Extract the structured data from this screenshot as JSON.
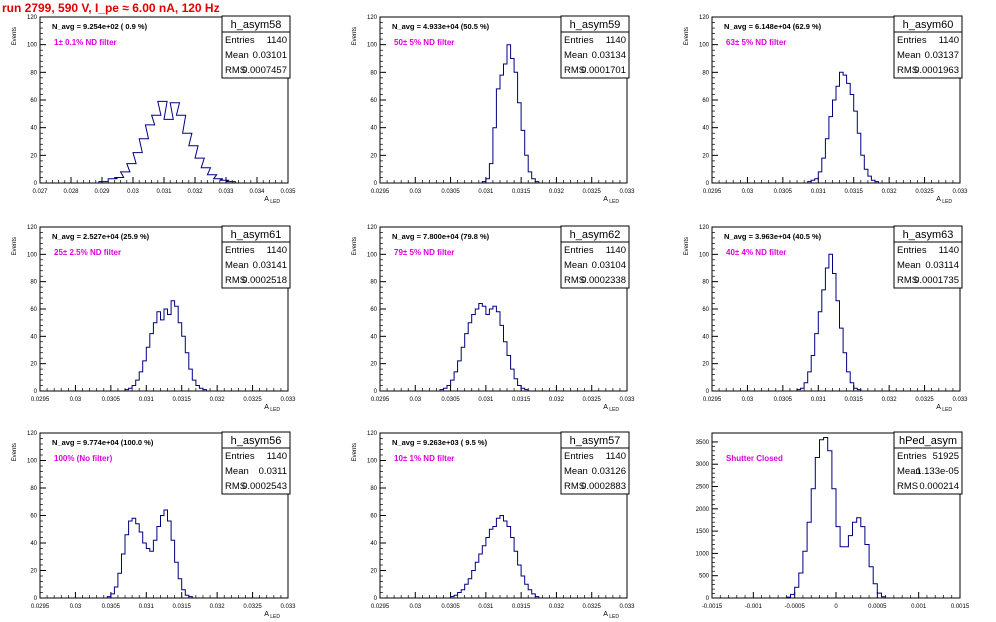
{
  "header": {
    "title": "run 2799,   590 V, I_pe ≈ 6.00 nA, 120 Hz",
    "title_color": "#e00000"
  },
  "colors": {
    "histogram": "#000080",
    "annotation": "#dd00dd",
    "axis": "#000000"
  },
  "chart_data": [
    {
      "type": "histogram",
      "name": "h_asym58",
      "navg": "N_avg = 9.254e+02 ( 0.9 %)",
      "filter": "1± 0.1% ND filter",
      "stats": {
        "Entries": "1140",
        "Mean": "0.03101",
        "RMS": "0.0007457"
      },
      "ylabel": "Events",
      "xlabel": "A_LED",
      "xlim": [
        0.027,
        0.035
      ],
      "ylim": [
        0,
        120
      ],
      "xticks": [
        "0.027",
        "0.028",
        "0.029",
        "0.03",
        "0.031",
        "0.032",
        "0.033",
        "0.034",
        "0.035"
      ],
      "xtickvals": [
        0.027,
        0.028,
        0.029,
        0.03,
        0.031,
        0.032,
        0.033,
        0.034,
        0.035
      ],
      "yticks": [
        0,
        20,
        40,
        60,
        80,
        100,
        120
      ],
      "mean": 0.03101,
      "sigma": 0.000746,
      "peak": 60,
      "bins": [
        [
          0.0289,
          1
        ],
        [
          0.0292,
          3
        ],
        [
          0.0294,
          4
        ],
        [
          0.0296,
          8
        ],
        [
          0.0298,
          14
        ],
        [
          0.03,
          22
        ],
        [
          0.0302,
          32
        ],
        [
          0.0304,
          42
        ],
        [
          0.0306,
          49
        ],
        [
          0.0308,
          59
        ],
        [
          0.031,
          46
        ],
        [
          0.0312,
          58
        ],
        [
          0.0314,
          49
        ],
        [
          0.0316,
          36
        ],
        [
          0.0318,
          27
        ],
        [
          0.032,
          18
        ],
        [
          0.0322,
          11
        ],
        [
          0.0324,
          6
        ],
        [
          0.0326,
          3
        ],
        [
          0.0328,
          2
        ],
        [
          0.033,
          1
        ]
      ]
    },
    {
      "type": "histogram",
      "name": "h_asym59",
      "navg": "N_avg = 4.933e+04 (50.5 %)",
      "filter": "50± 5% ND filter",
      "stats": {
        "Entries": "1140",
        "Mean": "0.03134",
        "RMS": "0.0001701"
      },
      "ylabel": "Events",
      "xlabel": "A_LED",
      "xlim": [
        0.0295,
        0.033
      ],
      "ylim": [
        0,
        120
      ],
      "xticks": [
        "0.0295",
        "0.03",
        "0.0305",
        "0.031",
        "0.0315",
        "0.032",
        "0.0325",
        "0.033"
      ],
      "xtickvals": [
        0.0295,
        0.03,
        0.0305,
        0.031,
        0.0315,
        0.032,
        0.0325,
        0.033
      ],
      "yticks": [
        0,
        20,
        40,
        60,
        80,
        100,
        120
      ],
      "mean": 0.03134,
      "sigma": 0.00017,
      "peak": 100,
      "bins": [
        [
          0.03095,
          1
        ],
        [
          0.031,
          3
        ],
        [
          0.03105,
          14
        ],
        [
          0.0311,
          40
        ],
        [
          0.03115,
          68
        ],
        [
          0.0312,
          78
        ],
        [
          0.03125,
          86
        ],
        [
          0.0313,
          100
        ],
        [
          0.03135,
          90
        ],
        [
          0.0314,
          80
        ],
        [
          0.03145,
          58
        ],
        [
          0.0315,
          38
        ],
        [
          0.03155,
          20
        ],
        [
          0.0316,
          8
        ],
        [
          0.03165,
          3
        ],
        [
          0.0317,
          1
        ]
      ]
    },
    {
      "type": "histogram",
      "name": "h_asym60",
      "navg": "N_avg = 6.148e+04 (62.9 %)",
      "filter": "63± 5% ND filter",
      "stats": {
        "Entries": "1140",
        "Mean": "0.03137",
        "RMS": "0.0001963"
      },
      "ylabel": "Events",
      "xlabel": "A_LED",
      "xlim": [
        0.0295,
        0.033
      ],
      "ylim": [
        0,
        120
      ],
      "xticks": [
        "0.0295",
        "0.03",
        "0.0305",
        "0.031",
        "0.0315",
        "0.032",
        "0.0325",
        "0.033"
      ],
      "xtickvals": [
        0.0295,
        0.03,
        0.0305,
        0.031,
        0.0315,
        0.032,
        0.0325,
        0.033
      ],
      "yticks": [
        0,
        20,
        40,
        60,
        80,
        100,
        120
      ],
      "mean": 0.03137,
      "sigma": 0.000196,
      "peak": 80,
      "bins": [
        [
          0.03085,
          1
        ],
        [
          0.0309,
          2
        ],
        [
          0.03095,
          3
        ],
        [
          0.031,
          8
        ],
        [
          0.03105,
          18
        ],
        [
          0.0311,
          32
        ],
        [
          0.03115,
          48
        ],
        [
          0.0312,
          60
        ],
        [
          0.03125,
          70
        ],
        [
          0.0313,
          80
        ],
        [
          0.03135,
          78
        ],
        [
          0.0314,
          72
        ],
        [
          0.03145,
          64
        ],
        [
          0.0315,
          52
        ],
        [
          0.03155,
          36
        ],
        [
          0.0316,
          20
        ],
        [
          0.03165,
          10
        ],
        [
          0.0317,
          5
        ],
        [
          0.03175,
          2
        ],
        [
          0.0318,
          1
        ]
      ]
    },
    {
      "type": "histogram",
      "name": "h_asym61",
      "navg": "N_avg = 2.527e+04 (25.9 %)",
      "filter": "25± 2.5% ND filter",
      "stats": {
        "Entries": "1140",
        "Mean": "0.03141",
        "RMS": "0.0002518"
      },
      "ylabel": "Events",
      "xlabel": "A_LED",
      "xlim": [
        0.0295,
        0.033
      ],
      "ylim": [
        0,
        120
      ],
      "xticks": [
        "0.0295",
        "0.03",
        "0.0305",
        "0.031",
        "0.0315",
        "0.032",
        "0.0325",
        "0.033"
      ],
      "xtickvals": [
        0.0295,
        0.03,
        0.0305,
        0.031,
        0.0315,
        0.032,
        0.0325,
        0.033
      ],
      "yticks": [
        0,
        20,
        40,
        60,
        80,
        100,
        120
      ],
      "mean": 0.03141,
      "sigma": 0.00025,
      "peak": 67,
      "bins": [
        [
          0.0307,
          1
        ],
        [
          0.03075,
          2
        ],
        [
          0.0308,
          4
        ],
        [
          0.03085,
          8
        ],
        [
          0.0309,
          14
        ],
        [
          0.03095,
          22
        ],
        [
          0.031,
          32
        ],
        [
          0.03105,
          42
        ],
        [
          0.0311,
          50
        ],
        [
          0.03115,
          58
        ],
        [
          0.0312,
          52
        ],
        [
          0.03125,
          60
        ],
        [
          0.0313,
          56
        ],
        [
          0.03135,
          66
        ],
        [
          0.0314,
          62
        ],
        [
          0.03145,
          50
        ],
        [
          0.0315,
          40
        ],
        [
          0.03155,
          28
        ],
        [
          0.0316,
          16
        ],
        [
          0.03165,
          8
        ],
        [
          0.0317,
          4
        ],
        [
          0.03175,
          2
        ],
        [
          0.0318,
          1
        ]
      ]
    },
    {
      "type": "histogram",
      "name": "h_asym62",
      "navg": "N_avg = 7.800e+04 (79.8 %)",
      "filter": "79± 5% ND filter",
      "stats": {
        "Entries": "1140",
        "Mean": "0.03104",
        "RMS": "0.0002338"
      },
      "ylabel": "Events",
      "xlabel": "A_LED",
      "xlim": [
        0.0295,
        0.033
      ],
      "ylim": [
        0,
        120
      ],
      "xticks": [
        "0.0295",
        "0.03",
        "0.0305",
        "0.031",
        "0.0315",
        "0.032",
        "0.0325",
        "0.033"
      ],
      "xtickvals": [
        0.0295,
        0.03,
        0.0305,
        0.031,
        0.0315,
        0.032,
        0.0325,
        0.033
      ],
      "yticks": [
        0,
        20,
        40,
        60,
        80,
        100,
        120
      ],
      "mean": 0.03104,
      "sigma": 0.000234,
      "peak": 64,
      "bins": [
        [
          0.03035,
          1
        ],
        [
          0.0304,
          2
        ],
        [
          0.03045,
          4
        ],
        [
          0.0305,
          8
        ],
        [
          0.03055,
          14
        ],
        [
          0.0306,
          22
        ],
        [
          0.03065,
          32
        ],
        [
          0.0307,
          42
        ],
        [
          0.03075,
          50
        ],
        [
          0.0308,
          56
        ],
        [
          0.03085,
          60
        ],
        [
          0.0309,
          64
        ],
        [
          0.03095,
          62
        ],
        [
          0.031,
          56
        ],
        [
          0.03105,
          60
        ],
        [
          0.0311,
          62
        ],
        [
          0.03115,
          58
        ],
        [
          0.0312,
          48
        ],
        [
          0.03125,
          36
        ],
        [
          0.0313,
          26
        ],
        [
          0.03135,
          16
        ],
        [
          0.0314,
          9
        ],
        [
          0.03145,
          4
        ],
        [
          0.0315,
          2
        ],
        [
          0.03155,
          1
        ]
      ]
    },
    {
      "type": "histogram",
      "name": "h_asym63",
      "navg": "N_avg = 3.963e+04 (40.5 %)",
      "filter": "40± 4% ND filter",
      "stats": {
        "Entries": "1140",
        "Mean": "0.03114",
        "RMS": "0.0001735"
      },
      "ylabel": "Events",
      "xlabel": "A_LED",
      "xlim": [
        0.0295,
        0.033
      ],
      "ylim": [
        0,
        120
      ],
      "xticks": [
        "0.0295",
        "0.03",
        "0.0305",
        "0.031",
        "0.0315",
        "0.032",
        "0.0325",
        "0.033"
      ],
      "xtickvals": [
        0.0295,
        0.03,
        0.0305,
        0.031,
        0.0315,
        0.032,
        0.0325,
        0.033
      ],
      "yticks": [
        0,
        20,
        40,
        60,
        80,
        100,
        120
      ],
      "mean": 0.03114,
      "sigma": 0.000174,
      "peak": 100,
      "bins": [
        [
          0.0307,
          1
        ],
        [
          0.03075,
          2
        ],
        [
          0.0308,
          6
        ],
        [
          0.03085,
          14
        ],
        [
          0.0309,
          26
        ],
        [
          0.03095,
          42
        ],
        [
          0.031,
          58
        ],
        [
          0.03105,
          74
        ],
        [
          0.0311,
          90
        ],
        [
          0.03115,
          100
        ],
        [
          0.0312,
          86
        ],
        [
          0.03125,
          66
        ],
        [
          0.0313,
          46
        ],
        [
          0.03135,
          28
        ],
        [
          0.0314,
          14
        ],
        [
          0.03145,
          6
        ],
        [
          0.0315,
          2
        ],
        [
          0.03155,
          1
        ]
      ]
    },
    {
      "type": "histogram",
      "name": "h_asym56",
      "navg": "N_avg = 9.774e+04 (100.0 %)",
      "filter": "100% (No filter)",
      "stats": {
        "Entries": "1140",
        "Mean": "0.0311",
        "RMS": "0.0002543"
      },
      "ylabel": "Events",
      "xlabel": "A_LED",
      "xlim": [
        0.0295,
        0.033
      ],
      "ylim": [
        0,
        120
      ],
      "xticks": [
        "0.0295",
        "0.03",
        "0.0305",
        "0.031",
        "0.0315",
        "0.032",
        "0.0325",
        "0.033"
      ],
      "xtickvals": [
        0.0295,
        0.03,
        0.0305,
        0.031,
        0.0315,
        0.032,
        0.0325,
        0.033
      ],
      "yticks": [
        0,
        20,
        40,
        60,
        80,
        100,
        120
      ],
      "mean": 0.0311,
      "sigma": 0.000254,
      "peak": 64,
      "bins": [
        [
          0.03045,
          1
        ],
        [
          0.0305,
          3
        ],
        [
          0.03055,
          8
        ],
        [
          0.0306,
          18
        ],
        [
          0.03065,
          32
        ],
        [
          0.0307,
          46
        ],
        [
          0.03075,
          56
        ],
        [
          0.0308,
          58
        ],
        [
          0.03085,
          54
        ],
        [
          0.0309,
          48
        ],
        [
          0.03095,
          40
        ],
        [
          0.031,
          36
        ],
        [
          0.03105,
          34
        ],
        [
          0.0311,
          42
        ],
        [
          0.03115,
          52
        ],
        [
          0.0312,
          60
        ],
        [
          0.03125,
          64
        ],
        [
          0.0313,
          56
        ],
        [
          0.03135,
          42
        ],
        [
          0.0314,
          26
        ],
        [
          0.03145,
          14
        ],
        [
          0.0315,
          6
        ],
        [
          0.03155,
          2
        ],
        [
          0.0316,
          1
        ]
      ]
    },
    {
      "type": "histogram",
      "name": "h_asym57",
      "navg": "N_avg = 9.263e+03 ( 9.5 %)",
      "filter": "10± 1% ND filter",
      "stats": {
        "Entries": "1140",
        "Mean": "0.03126",
        "RMS": "0.0002883"
      },
      "ylabel": "Events",
      "xlabel": "A_LED",
      "xlim": [
        0.0295,
        0.033
      ],
      "ylim": [
        0,
        120
      ],
      "xticks": [
        "0.0295",
        "0.03",
        "0.0305",
        "0.031",
        "0.0315",
        "0.032",
        "0.0325",
        "0.033"
      ],
      "xtickvals": [
        0.0295,
        0.03,
        0.0305,
        0.031,
        0.0315,
        0.032,
        0.0325,
        0.033
      ],
      "yticks": [
        0,
        20,
        40,
        60,
        80,
        100,
        120
      ],
      "mean": 0.03126,
      "sigma": 0.000288,
      "peak": 61,
      "bins": [
        [
          0.0305,
          1
        ],
        [
          0.03055,
          2
        ],
        [
          0.0306,
          4
        ],
        [
          0.03065,
          6
        ],
        [
          0.0307,
          10
        ],
        [
          0.03075,
          14
        ],
        [
          0.0308,
          20
        ],
        [
          0.03085,
          26
        ],
        [
          0.0309,
          32
        ],
        [
          0.03095,
          38
        ],
        [
          0.031,
          44
        ],
        [
          0.03105,
          50
        ],
        [
          0.0311,
          52
        ],
        [
          0.03115,
          58
        ],
        [
          0.0312,
          60
        ],
        [
          0.03125,
          56
        ],
        [
          0.0313,
          52
        ],
        [
          0.03135,
          44
        ],
        [
          0.0314,
          34
        ],
        [
          0.03145,
          24
        ],
        [
          0.0315,
          16
        ],
        [
          0.03155,
          10
        ],
        [
          0.0316,
          6
        ],
        [
          0.03165,
          3
        ],
        [
          0.0317,
          1
        ]
      ]
    },
    {
      "type": "histogram",
      "name": "hPed_asym",
      "navg": "",
      "filter": "Shutter Closed",
      "stats": {
        "Entries": "51925",
        "Mean": "1.133e-05",
        "RMS": "0.000214"
      },
      "ylabel": "",
      "xlabel": "",
      "xlim": [
        -0.0015,
        0.0015
      ],
      "ylim": [
        0,
        3700
      ],
      "xticks": [
        "-0.0015",
        "-0.001",
        "-0.0005",
        "0",
        "0.0005",
        "0.001",
        "0.0015"
      ],
      "xtickvals": [
        -0.0015,
        -0.001,
        -0.0005,
        0,
        0.0005,
        0.001,
        0.0015
      ],
      "yticks": [
        0,
        500,
        1000,
        1500,
        2000,
        2500,
        3000,
        3500
      ],
      "mean": 1.133e-05,
      "sigma": 0.000214,
      "peak": 3600,
      "bins": [
        [
          -0.0006,
          20
        ],
        [
          -0.00055,
          80
        ],
        [
          -0.0005,
          240
        ],
        [
          -0.00045,
          560
        ],
        [
          -0.0004,
          1050
        ],
        [
          -0.00035,
          1700
        ],
        [
          -0.0003,
          2450
        ],
        [
          -0.00025,
          3150
        ],
        [
          -0.0002,
          3550
        ],
        [
          -0.00015,
          3600
        ],
        [
          -0.0001,
          3300
        ],
        [
          -5e-05,
          2450
        ],
        [
          0.0,
          1600
        ],
        [
          5e-05,
          1150
        ],
        [
          0.0001,
          1150
        ],
        [
          0.00015,
          1400
        ],
        [
          0.0002,
          1700
        ],
        [
          0.00025,
          1800
        ],
        [
          0.0003,
          1600
        ],
        [
          0.00035,
          1200
        ],
        [
          0.0004,
          700
        ],
        [
          0.00045,
          320
        ],
        [
          0.0005,
          110
        ],
        [
          0.00055,
          30
        ]
      ]
    }
  ]
}
